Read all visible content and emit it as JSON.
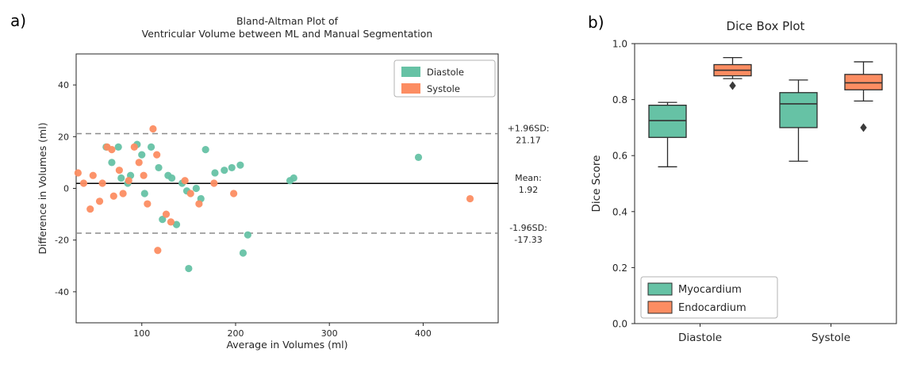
{
  "panels": {
    "a_label": "a)",
    "b_label": "b)"
  },
  "chart_data": [
    {
      "type": "scatter",
      "title_lines": [
        "Bland-Altman Plot of",
        "Ventricular Volume between ML and Manual Segmentation"
      ],
      "xlabel": "Average in Volumes (ml)",
      "ylabel": "Difference in Volumes (ml)",
      "xlim": [
        30,
        480
      ],
      "ylim": [
        -52,
        52
      ],
      "xticks": [
        "100",
        "200",
        "300",
        "400"
      ],
      "yticks": [
        "-40",
        "-20",
        "0",
        "20",
        "40"
      ],
      "grid": false,
      "legend": {
        "position": "upper right",
        "entries": [
          {
            "label": "Diastole",
            "color": "#66c2a5"
          },
          {
            "label": "Systole",
            "color": "#fc8d62"
          }
        ]
      },
      "reference_lines": [
        {
          "label": "+1.96SD:",
          "value_label": "21.17",
          "value": 21.17,
          "style": "dashed",
          "color": "#8c8c8c"
        },
        {
          "label": "Mean:",
          "value_label": "1.92",
          "value": 1.92,
          "style": "solid",
          "color": "#000000"
        },
        {
          "label": "-1.96SD:",
          "value_label": "-17.33",
          "value": -17.33,
          "style": "dashed",
          "color": "#8c8c8c"
        }
      ],
      "series": [
        {
          "name": "Diastole",
          "color": "#66c2a5",
          "points": [
            [
              62,
              16
            ],
            [
              68,
              10
            ],
            [
              75,
              16
            ],
            [
              78,
              4
            ],
            [
              85,
              2
            ],
            [
              88,
              5
            ],
            [
              95,
              17
            ],
            [
              100,
              13
            ],
            [
              103,
              -2
            ],
            [
              110,
              16
            ],
            [
              118,
              8
            ],
            [
              122,
              -12
            ],
            [
              128,
              5
            ],
            [
              132,
              4
            ],
            [
              137,
              -14
            ],
            [
              143,
              2
            ],
            [
              148,
              -1
            ],
            [
              150,
              -31
            ],
            [
              158,
              0
            ],
            [
              163,
              -4
            ],
            [
              168,
              15
            ],
            [
              178,
              6
            ],
            [
              188,
              7
            ],
            [
              196,
              8
            ],
            [
              205,
              9
            ],
            [
              208,
              -25
            ],
            [
              213,
              -18
            ],
            [
              258,
              3
            ],
            [
              262,
              4
            ],
            [
              395,
              12
            ]
          ]
        },
        {
          "name": "Systole",
          "color": "#fc8d62",
          "points": [
            [
              32,
              6
            ],
            [
              38,
              2
            ],
            [
              45,
              -8
            ],
            [
              48,
              5
            ],
            [
              55,
              -5
            ],
            [
              58,
              2
            ],
            [
              63,
              16
            ],
            [
              68,
              15
            ],
            [
              70,
              -3
            ],
            [
              76,
              7
            ],
            [
              80,
              -2
            ],
            [
              86,
              3
            ],
            [
              92,
              16
            ],
            [
              97,
              10
            ],
            [
              102,
              5
            ],
            [
              106,
              -6
            ],
            [
              112,
              23
            ],
            [
              116,
              13
            ],
            [
              117,
              -24
            ],
            [
              126,
              -10
            ],
            [
              131,
              -13
            ],
            [
              146,
              3
            ],
            [
              152,
              -2
            ],
            [
              161,
              -6
            ],
            [
              177,
              2
            ],
            [
              198,
              -2
            ],
            [
              450,
              -4
            ]
          ]
        }
      ]
    },
    {
      "type": "box",
      "title": "Dice Box Plot",
      "ylabel": "Dice Score",
      "ylim": [
        0,
        1
      ],
      "yticks": [
        "0.0",
        "0.2",
        "0.4",
        "0.6",
        "0.8",
        "1.0"
      ],
      "categories": [
        "Diastole",
        "Systole"
      ],
      "legend": {
        "position": "lower left",
        "entries": [
          {
            "label": "Myocardium",
            "color": "#66c2a5"
          },
          {
            "label": "Endocardium",
            "color": "#fc8d62"
          }
        ]
      },
      "series": [
        {
          "name": "Myocardium",
          "color": "#66c2a5",
          "boxes": [
            {
              "category": "Diastole",
              "whisker_low": 0.56,
              "q1": 0.665,
              "median": 0.725,
              "q3": 0.78,
              "whisker_high": 0.79,
              "outliers": []
            },
            {
              "category": "Systole",
              "whisker_low": 0.58,
              "q1": 0.7,
              "median": 0.785,
              "q3": 0.825,
              "whisker_high": 0.87,
              "outliers": []
            }
          ]
        },
        {
          "name": "Endocardium",
          "color": "#fc8d62",
          "boxes": [
            {
              "category": "Diastole",
              "whisker_low": 0.875,
              "q1": 0.885,
              "median": 0.905,
              "q3": 0.925,
              "whisker_high": 0.95,
              "outliers": [
                0.85
              ]
            },
            {
              "category": "Systole",
              "whisker_low": 0.795,
              "q1": 0.835,
              "median": 0.86,
              "q3": 0.89,
              "whisker_high": 0.935,
              "outliers": [
                0.7
              ]
            }
          ]
        }
      ]
    }
  ]
}
